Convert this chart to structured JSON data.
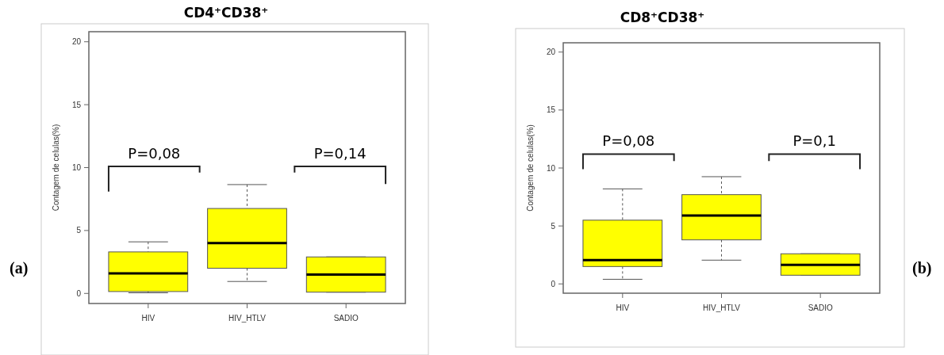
{
  "chart_data": [
    {
      "type": "box",
      "title": "CD4⁺CD38⁺",
      "ylabel": "Contagem de celulas(%)",
      "categories": [
        "HIV",
        "HIV_HTLV",
        "SADIO"
      ],
      "color": "#ffff00",
      "ylim": [
        -0.8,
        20.8
      ],
      "yticks": [
        0,
        5,
        10,
        15,
        20
      ],
      "grid": false,
      "boxes": [
        {
          "low": 0.05,
          "q1": 0.15,
          "median": 1.6,
          "q3": 3.3,
          "high": 4.1
        },
        {
          "low": 0.95,
          "q1": 2.0,
          "median": 4.0,
          "q3": 6.75,
          "high": 8.65
        },
        {
          "low": 0.1,
          "q1": 0.1,
          "median": 1.5,
          "q3": 2.9,
          "high": 2.9
        }
      ],
      "annotations": [
        "P=0,08",
        "P=0,14",
        "(a)"
      ]
    },
    {
      "type": "box",
      "title": "CD8⁺CD38⁺",
      "ylabel": "Contagem de celulas(%)",
      "categories": [
        "HIV",
        "HIV_HTLV",
        "SADIO"
      ],
      "color": "#ffff00",
      "ylim": [
        -0.8,
        20.8
      ],
      "yticks": [
        0,
        5,
        10,
        15,
        20
      ],
      "grid": false,
      "boxes": [
        {
          "low": 0.4,
          "q1": 1.5,
          "median": 2.05,
          "q3": 5.5,
          "high": 8.2
        },
        {
          "low": 2.05,
          "q1": 3.8,
          "median": 5.9,
          "q3": 7.7,
          "high": 9.25
        },
        {
          "low": 0.75,
          "q1": 0.75,
          "median": 1.65,
          "q3": 2.6,
          "high": 2.6
        }
      ],
      "annotations": [
        "P=0,08",
        "P=0,1",
        "(b)"
      ]
    }
  ]
}
